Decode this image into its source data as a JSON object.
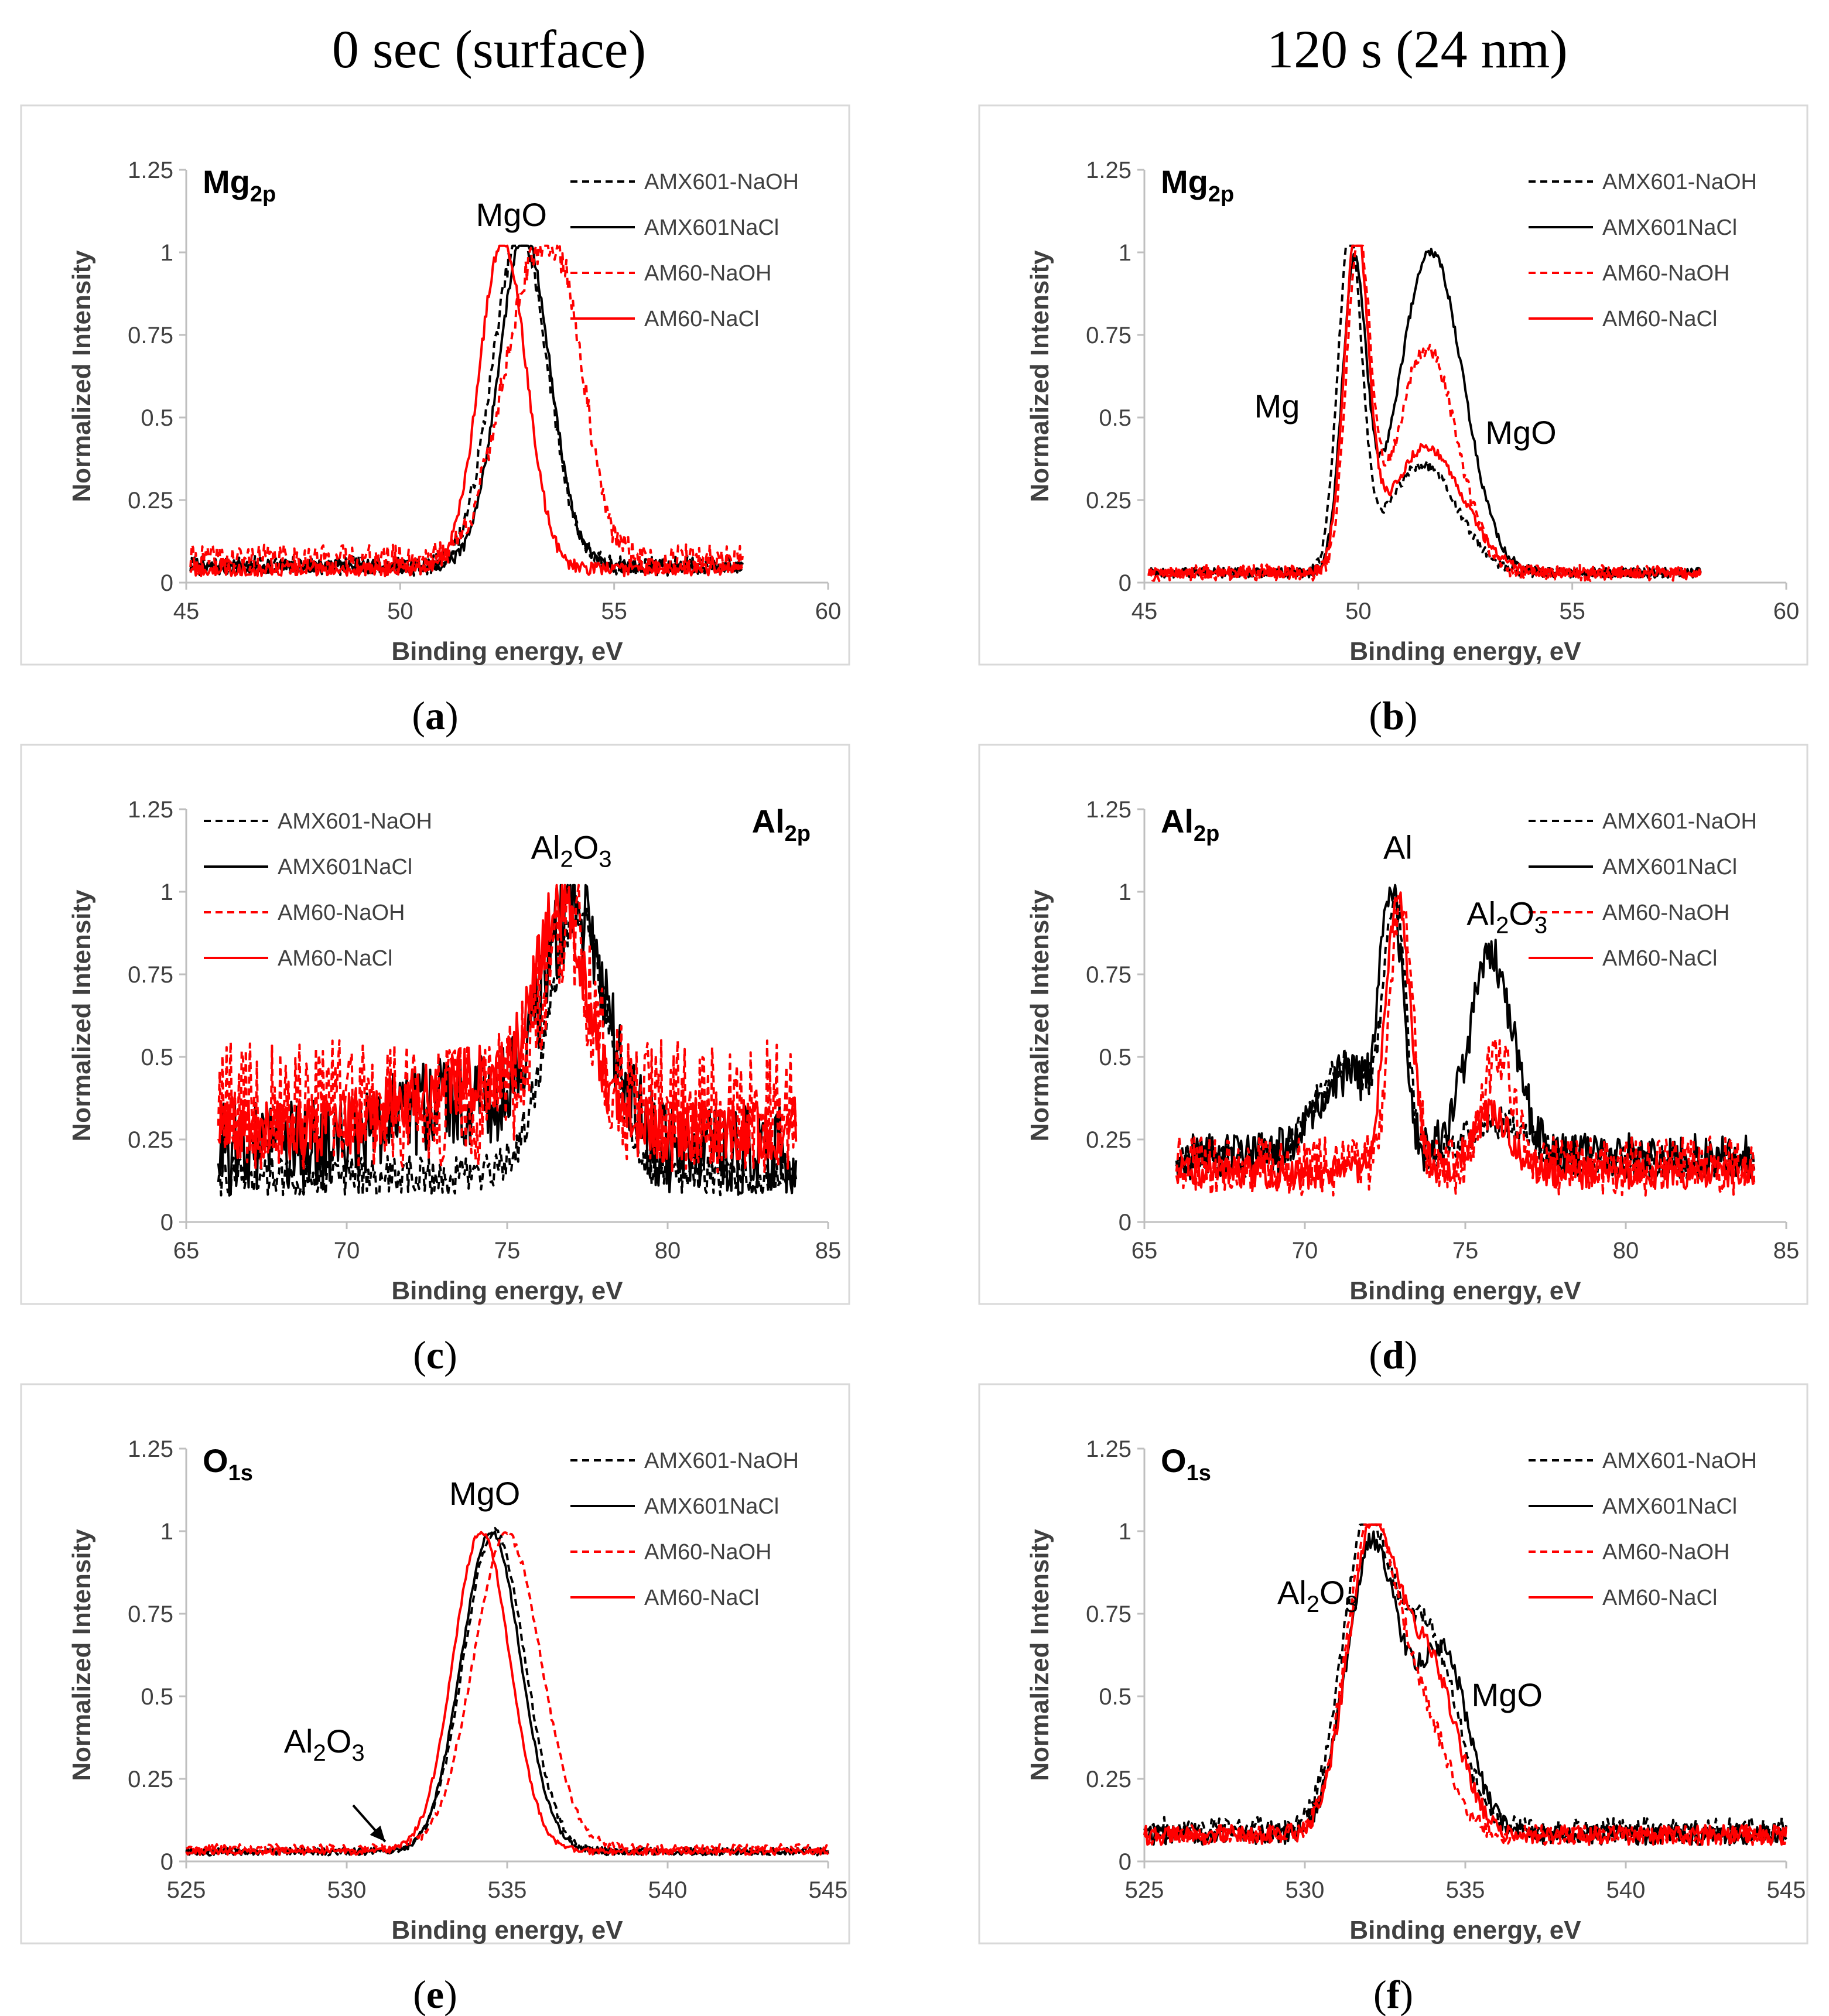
{
  "column_titles": [
    "0 sec (surface)",
    "120 s (24 nm)"
  ],
  "series_styles": [
    {
      "name": "AMX601-NaOH",
      "color": "#000000",
      "dashed": true
    },
    {
      "name": "AMX601NaCl",
      "color": "#000000",
      "dashed": false
    },
    {
      "name": "AM60-NaOH",
      "color": "#ff0000",
      "dashed": true
    },
    {
      "name": "AM60-NaCl",
      "color": "#ff0000",
      "dashed": false
    }
  ],
  "chart_data": [
    {
      "type": "line",
      "id": "a",
      "caption_letter": "a",
      "element_main": "Mg",
      "element_sub": "2p",
      "element_pos": "top-left",
      "xlabel": "Binding energy, eV",
      "ylabel": "Normalized Intensity",
      "xlim": [
        45,
        60
      ],
      "xticks": [
        45,
        50,
        55,
        60
      ],
      "ylim": [
        0,
        1.25
      ],
      "yticks": [
        "0",
        "0.25",
        "0.5",
        "0.75",
        "1",
        "1.25"
      ],
      "legend_pos": "top-right",
      "annotations": [
        {
          "main": "MgO",
          "x": 52.6,
          "y": 1.08
        }
      ],
      "series": [
        {
          "name": "AMX601-NaOH",
          "base": 0.05,
          "noise": 0.03,
          "xmin": 45.1,
          "xmax": 58,
          "peaks": [
            [
              52.8,
              1.0,
              0.65
            ]
          ]
        },
        {
          "name": "AMX601NaCl",
          "base": 0.05,
          "noise": 0.02,
          "xmin": 45.1,
          "xmax": 58,
          "peaks": [
            [
              52.9,
              1.0,
              0.6
            ]
          ]
        },
        {
          "name": "AM60-NaOH",
          "base": 0.07,
          "noise": 0.045,
          "xmin": 45.1,
          "xmax": 58,
          "peaks": [
            [
              53.2,
              0.9,
              0.8
            ],
            [
              54.0,
              0.25,
              0.4
            ]
          ]
        },
        {
          "name": "AM60-NaCl",
          "base": 0.04,
          "noise": 0.02,
          "xmin": 45.1,
          "xmax": 58,
          "peaks": [
            [
              52.4,
              1.0,
              0.55
            ]
          ]
        }
      ]
    },
    {
      "type": "line",
      "id": "b",
      "caption_letter": "b",
      "element_main": "Mg",
      "element_sub": "2p",
      "element_pos": "top-left",
      "xlabel": "Binding energy, eV",
      "ylabel": "Normalized Intensity",
      "xlim": [
        45,
        60
      ],
      "xticks": [
        45,
        50,
        55,
        60
      ],
      "ylim": [
        0,
        1.25
      ],
      "yticks": [
        "0",
        "0.25",
        "0.5",
        "0.75",
        "1",
        "1.25"
      ],
      "legend_pos": "top-right",
      "annotations": [
        {
          "main": "Mg",
          "x": 48.1,
          "y": 0.5
        },
        {
          "main": "MgO",
          "x": 53.8,
          "y": 0.42
        }
      ],
      "series": [
        {
          "name": "AMX601-NaOH",
          "base": 0.03,
          "noise": 0.015,
          "xmin": 45.1,
          "xmax": 58,
          "peaks": [
            [
              49.8,
              1.0,
              0.28
            ],
            [
              51.5,
              0.33,
              0.8
            ]
          ]
        },
        {
          "name": "AMX601NaCl",
          "base": 0.03,
          "noise": 0.015,
          "xmin": 45.1,
          "xmax": 58,
          "peaks": [
            [
              49.9,
              0.9,
              0.28
            ],
            [
              51.7,
              0.97,
              0.75
            ]
          ]
        },
        {
          "name": "AM60-NaOH",
          "base": 0.03,
          "noise": 0.025,
          "xmin": 45.1,
          "xmax": 58,
          "peaks": [
            [
              50.0,
              0.98,
              0.28
            ],
            [
              51.6,
              0.68,
              0.7
            ]
          ]
        },
        {
          "name": "AM60-NaCl",
          "base": 0.03,
          "noise": 0.015,
          "xmin": 45.1,
          "xmax": 58,
          "peaks": [
            [
              49.95,
              1.0,
              0.28
            ],
            [
              51.6,
              0.38,
              0.85
            ]
          ]
        }
      ]
    },
    {
      "type": "line",
      "id": "c",
      "caption_letter": "c",
      "element_main": "Al",
      "element_sub": "2p",
      "element_pos": "top-right",
      "xlabel": "Binding energy, eV",
      "ylabel": "Normalized Intensity",
      "xlim": [
        65,
        85
      ],
      "xticks": [
        65,
        70,
        75,
        80,
        85
      ],
      "ylim": [
        0,
        1.25
      ],
      "yticks": [
        "0",
        "0.25",
        "0.5",
        "0.75",
        "1",
        "1.25"
      ],
      "legend_pos": "top-left",
      "annotations": [
        {
          "main": "Al",
          "sub": "2",
          "main2": "O",
          "sub2": "3",
          "x": 77.0,
          "y": 1.1
        }
      ],
      "series": [
        {
          "name": "AMX601-NaOH",
          "base": 0.14,
          "noise": 0.06,
          "xmin": 66,
          "xmax": 84,
          "peaks": [
            [
              77.2,
              0.8,
              0.9
            ]
          ]
        },
        {
          "name": "AMX601NaCl",
          "base": 0.22,
          "noise": 0.14,
          "xmin": 66,
          "xmax": 84,
          "peaks": [
            [
              73.5,
              0.15,
              2.0
            ],
            [
              77.1,
              0.7,
              1.0
            ]
          ]
        },
        {
          "name": "AM60-NaOH",
          "base": 0.35,
          "noise": 0.2,
          "xmin": 66,
          "xmax": 84,
          "peaks": [
            [
              76.8,
              0.55,
              0.8
            ]
          ]
        },
        {
          "name": "AM60-NaCl",
          "base": 0.28,
          "noise": 0.1,
          "xmin": 66,
          "xmax": 84,
          "peaks": [
            [
              74.0,
              0.15,
              2.0
            ],
            [
              76.7,
              0.62,
              0.8
            ]
          ]
        }
      ]
    },
    {
      "type": "line",
      "id": "d",
      "caption_letter": "d",
      "element_main": "Al",
      "element_sub": "2p",
      "element_pos": "top-left",
      "xlabel": "Binding energy, eV",
      "ylabel": "Normalized Intensity",
      "xlim": [
        65,
        85
      ],
      "xticks": [
        65,
        70,
        75,
        80,
        85
      ],
      "ylim": [
        0,
        1.25
      ],
      "yticks": [
        "0",
        "0.25",
        "0.5",
        "0.75",
        "1",
        "1.25"
      ],
      "legend_pos": "top-right",
      "annotations": [
        {
          "main": "Al",
          "x": 72.9,
          "y": 1.1
        },
        {
          "main": "Al",
          "sub": "2",
          "main2": "O",
          "sub2": "3",
          "x": 76.3,
          "y": 0.9
        }
      ],
      "series": [
        {
          "name": "AMX601-NaOH",
          "base": 0.18,
          "noise": 0.05,
          "xmin": 66,
          "xmax": 84,
          "peaks": [
            [
              71.2,
              0.3,
              0.9
            ],
            [
              72.8,
              0.75,
              0.35
            ],
            [
              76.0,
              0.12,
              1.0
            ]
          ]
        },
        {
          "name": "AMX601NaCl",
          "base": 0.2,
          "noise": 0.07,
          "xmin": 66,
          "xmax": 84,
          "peaks": [
            [
              71.3,
              0.25,
              0.9
            ],
            [
              72.7,
              0.75,
              0.35
            ],
            [
              75.8,
              0.6,
              0.7
            ]
          ]
        },
        {
          "name": "AM60-NaOH",
          "base": 0.17,
          "noise": 0.09,
          "xmin": 66,
          "xmax": 84,
          "peaks": [
            [
              73.0,
              0.82,
              0.35
            ],
            [
              76.0,
              0.35,
              0.45
            ]
          ]
        },
        {
          "name": "AM60-NaCl",
          "base": 0.15,
          "noise": 0.05,
          "xmin": 66,
          "xmax": 84,
          "peaks": [
            [
              72.9,
              0.82,
              0.4
            ],
            [
              75.8,
              0.18,
              0.6
            ]
          ]
        }
      ]
    },
    {
      "type": "line",
      "id": "e",
      "caption_letter": "e",
      "element_main": "O",
      "element_sub": "1s",
      "element_pos": "top-left",
      "xlabel": "Binding energy, eV",
      "ylabel": "Normalized Intensity",
      "xlim": [
        525,
        545
      ],
      "xticks": [
        525,
        530,
        535,
        540,
        545
      ],
      "ylim": [
        0,
        1.25
      ],
      "yticks": [
        "0",
        "0.25",
        "0.5",
        "0.75",
        "1",
        "1.25"
      ],
      "legend_pos": "top-right",
      "annotations": [
        {
          "main": "MgO",
          "x": 534.3,
          "y": 1.08
        },
        {
          "main": "Al",
          "sub": "2",
          "main2": "O",
          "sub2": "3",
          "x": 529.3,
          "y": 0.33
        }
      ],
      "arrow": {
        "from": [
          530.2,
          0.17
        ],
        "to": [
          531.2,
          0.06
        ]
      },
      "series": [
        {
          "name": "AMX601-NaOH",
          "base": 0.03,
          "noise": 0.012,
          "xmin": 525,
          "xmax": 545,
          "peaks": [
            [
              534.6,
              0.97,
              0.95
            ]
          ]
        },
        {
          "name": "AMX601NaCl",
          "base": 0.03,
          "noise": 0.01,
          "xmin": 525,
          "xmax": 545,
          "peaks": [
            [
              534.5,
              0.97,
              0.92
            ]
          ]
        },
        {
          "name": "AM60-NaOH",
          "base": 0.04,
          "noise": 0.012,
          "xmin": 525,
          "xmax": 545,
          "peaks": [
            [
              535.0,
              0.95,
              1.05
            ]
          ]
        },
        {
          "name": "AM60-NaCl",
          "base": 0.03,
          "noise": 0.01,
          "xmin": 525,
          "xmax": 545,
          "peaks": [
            [
              534.2,
              0.97,
              0.88
            ]
          ]
        }
      ]
    },
    {
      "type": "line",
      "id": "f",
      "caption_letter": "f",
      "element_main": "O",
      "element_sub": "1s",
      "element_pos": "top-left",
      "xlabel": "Binding energy, eV",
      "ylabel": "Normalized Intensity",
      "xlim": [
        525,
        545
      ],
      "xticks": [
        525,
        530,
        535,
        540,
        545
      ],
      "ylim": [
        0,
        1.25
      ],
      "yticks": [
        "0",
        "0.25",
        "0.5",
        "0.75",
        "1",
        "1.25"
      ],
      "legend_pos": "top-right",
      "annotations": [
        {
          "main": "Al",
          "sub": "2",
          "main2": "O",
          "sub2": "3",
          "x": 530.4,
          "y": 0.78
        },
        {
          "main": "MgO",
          "x": 536.3,
          "y": 0.47
        }
      ],
      "series": [
        {
          "name": "AMX601-NaOH",
          "base": 0.1,
          "noise": 0.035,
          "xmin": 525,
          "xmax": 545,
          "peaks": [
            [
              531.9,
              0.88,
              0.75
            ],
            [
              533.8,
              0.6,
              0.9
            ]
          ]
        },
        {
          "name": "AMX601NaCl",
          "base": 0.08,
          "noise": 0.03,
          "xmin": 525,
          "xmax": 545,
          "peaks": [
            [
              532.1,
              0.88,
              0.8
            ],
            [
              534.3,
              0.55,
              0.8
            ]
          ]
        },
        {
          "name": "AM60-NaOH",
          "base": 0.08,
          "noise": 0.03,
          "xmin": 525,
          "xmax": 545,
          "peaks": [
            [
              532.0,
              0.88,
              0.75
            ],
            [
              533.5,
              0.38,
              0.9
            ]
          ]
        },
        {
          "name": "AM60-NaCl",
          "base": 0.08,
          "noise": 0.03,
          "xmin": 525,
          "xmax": 545,
          "peaks": [
            [
              532.1,
              0.9,
              0.78
            ],
            [
              533.9,
              0.5,
              0.85
            ]
          ]
        }
      ]
    }
  ]
}
